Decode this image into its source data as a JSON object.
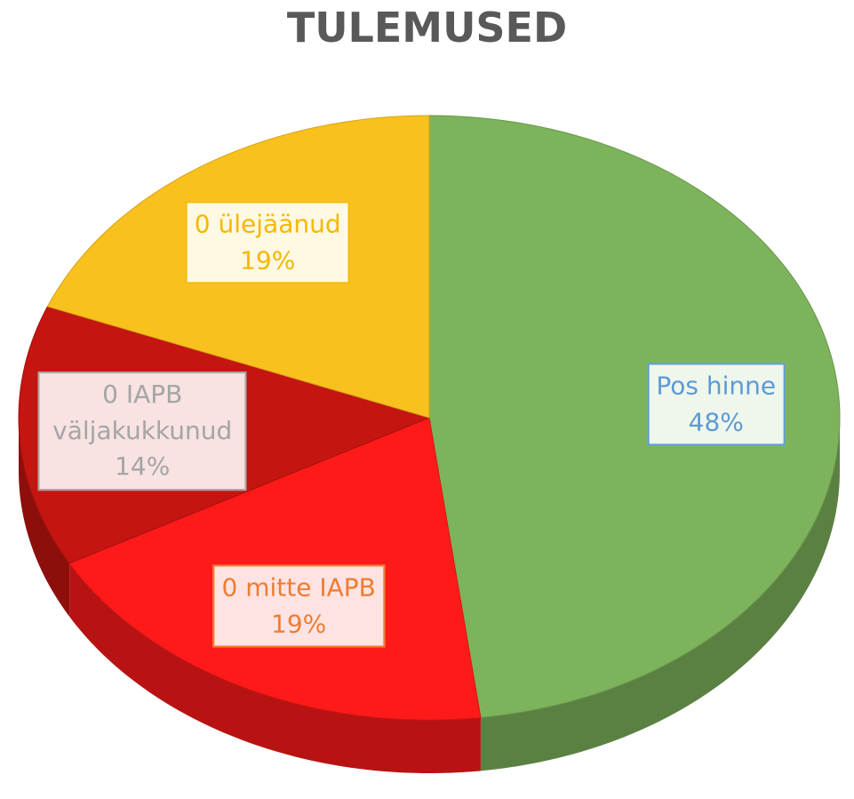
{
  "chart_data": {
    "type": "pie",
    "title": "TULEMUSED",
    "categories": [
      "Pos hinne",
      "0 mitte IAPB",
      "0 IAPB väljakukkunud",
      "0 ülejäänud"
    ],
    "values": [
      48,
      19,
      14,
      19
    ],
    "value_labels": [
      "48%",
      "19%",
      "14%",
      "19%"
    ],
    "colors": [
      "#7db35b",
      "#ff1a1a",
      "#c41510",
      "#f9c11d"
    ],
    "label_colors": [
      "#5b9bd5",
      "#ed7d31",
      "#a5a5a5",
      "#f5b800"
    ]
  }
}
